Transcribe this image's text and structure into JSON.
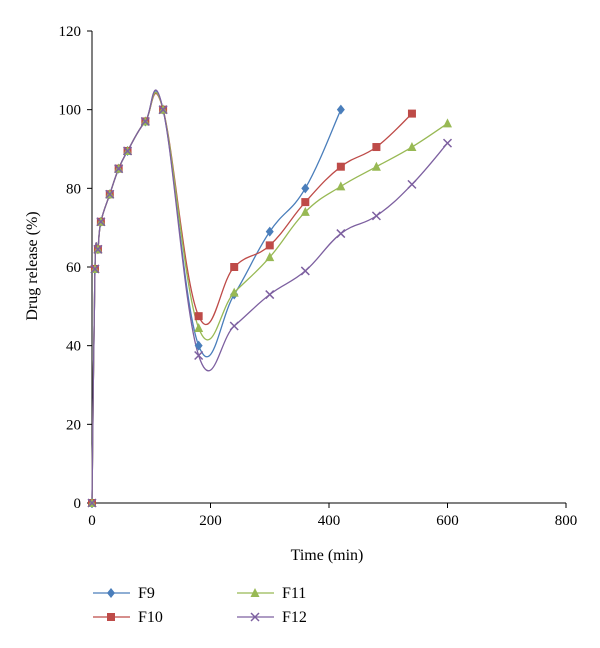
{
  "chart_data": {
    "type": "line",
    "title": "",
    "xlabel": "Time (min)",
    "ylabel": "Drug release (%)",
    "xlim": [
      0,
      800
    ],
    "ylim": [
      0,
      120
    ],
    "xticks": [
      0,
      200,
      400,
      600,
      800
    ],
    "yticks": [
      0,
      20,
      40,
      60,
      80,
      100,
      120
    ],
    "xtick_labels": [
      "0",
      "200",
      "400",
      "600",
      "800"
    ],
    "ytick_labels": [
      "0",
      "20",
      "40",
      "60",
      "80",
      "100",
      "120"
    ],
    "grid": false,
    "legend_position": "bottom-left",
    "smooth": true,
    "series": [
      {
        "name": "F9",
        "color": "#4a7ebb",
        "marker": "diamond",
        "x": [
          0,
          5,
          10,
          15,
          30,
          45,
          60,
          90,
          120,
          180,
          240,
          300,
          360,
          420
        ],
        "y": [
          0,
          59.5,
          64.5,
          71.5,
          78.5,
          85,
          89.5,
          97,
          100,
          40,
          53,
          69,
          80,
          100
        ]
      },
      {
        "name": "F10",
        "color": "#be4b48",
        "marker": "square",
        "x": [
          0,
          5,
          10,
          15,
          30,
          45,
          60,
          90,
          120,
          180,
          240,
          300,
          360,
          420,
          480,
          540
        ],
        "y": [
          0,
          59.5,
          64.5,
          71.5,
          78.5,
          85,
          89.5,
          97,
          100,
          47.5,
          60,
          65.5,
          76.5,
          85.5,
          90.5,
          99
        ]
      },
      {
        "name": "F11",
        "color": "#98b954",
        "marker": "triangle",
        "x": [
          0,
          5,
          10,
          15,
          30,
          45,
          60,
          90,
          120,
          180,
          240,
          300,
          360,
          420,
          480,
          540,
          600
        ],
        "y": [
          0,
          59.5,
          64.5,
          71.5,
          78.5,
          85,
          89.5,
          97,
          100,
          44.5,
          53.5,
          62.5,
          74,
          80.5,
          85.5,
          90.5,
          96.5
        ]
      },
      {
        "name": "F12",
        "color": "#7d60a0",
        "marker": "x",
        "x": [
          0,
          5,
          10,
          15,
          30,
          45,
          60,
          90,
          120,
          180,
          240,
          300,
          360,
          420,
          480,
          540,
          600
        ],
        "y": [
          0,
          59.5,
          64.5,
          71.5,
          78.5,
          85,
          89.5,
          97,
          100,
          37.5,
          45,
          53,
          59,
          68.5,
          73,
          81,
          91.5
        ]
      }
    ]
  }
}
